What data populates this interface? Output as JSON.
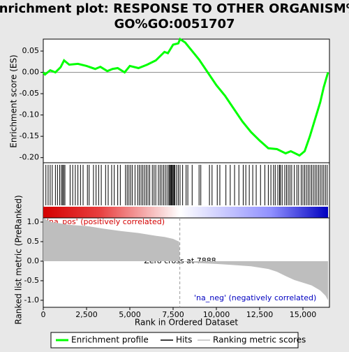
{
  "chart_data": [
    {
      "type": "line",
      "title": [
        "Enrichment plot: RESPONSE TO OTHER ORGANISM%",
        "GO%GO:0051707"
      ],
      "ylabel": "Enrichment score (ES)",
      "xlim": [
        0,
        16532
      ],
      "ylim": [
        -0.212,
        0.078
      ],
      "yticks": [
        0.05,
        {
          "value": 0,
          "label": "0.00"
        },
        -0.05,
        {
          "value": -0.1,
          "label": "-0.10"
        },
        -0.15,
        {
          "value": -0.2,
          "label": "-0.20"
        }
      ],
      "series": [
        {
          "name": "Enrichment profile",
          "color": "#00ff00",
          "x": [
            0,
            100,
            400,
            700,
            1000,
            1200,
            1500,
            2000,
            2500,
            3000,
            3300,
            3700,
            4000,
            4300,
            4700,
            5000,
            5500,
            6000,
            6500,
            7000,
            7200,
            7500,
            7800,
            7900,
            8200,
            8500,
            9000,
            9500,
            10000,
            10500,
            11000,
            11500,
            12000,
            12500,
            13000,
            13500,
            14000,
            14300,
            14800,
            15100,
            15400,
            15700,
            16000,
            16200,
            16450
          ],
          "values": [
            0.0,
            -0.005,
            0.005,
            0.0,
            0.012,
            0.028,
            0.018,
            0.02,
            0.015,
            0.008,
            0.013,
            0.003,
            0.008,
            0.01,
            0.0,
            0.015,
            0.01,
            0.018,
            0.028,
            0.048,
            0.045,
            0.065,
            0.068,
            0.078,
            0.07,
            0.055,
            0.03,
            0.0,
            -0.03,
            -0.055,
            -0.085,
            -0.115,
            -0.14,
            -0.16,
            -0.178,
            -0.18,
            -0.19,
            -0.185,
            -0.195,
            -0.185,
            -0.15,
            -0.11,
            -0.07,
            -0.035,
            0.0
          ]
        }
      ]
    },
    {
      "type": "hits",
      "name": "Hits",
      "color": "#000000",
      "xlim": [
        0,
        16532
      ],
      "x": [
        150,
        280,
        400,
        520,
        700,
        820,
        950,
        1050,
        1120,
        1180,
        1250,
        1550,
        1700,
        1850,
        2000,
        2150,
        2300,
        2550,
        2650,
        2900,
        3050,
        3200,
        3350,
        3600,
        3750,
        3950,
        4100,
        4300,
        4450,
        4750,
        4850,
        4950,
        5050,
        5150,
        5300,
        5450,
        5550,
        5650,
        5750,
        5850,
        5950,
        6050,
        6150,
        6300,
        6400,
        6500,
        6650,
        6750,
        6850,
        6950,
        7050,
        7150,
        7250,
        7300,
        7350,
        7400,
        7450,
        7500,
        7550,
        7600,
        7700,
        7800,
        7900,
        8050,
        8250,
        8350,
        8600,
        9000,
        9100,
        9600,
        9750,
        10050,
        10200,
        10550,
        10800,
        11050,
        11300,
        11550,
        11700,
        11900,
        12100,
        12300,
        12550,
        12800,
        13000,
        13150,
        13300,
        13400,
        13550,
        13650,
        13700,
        13800,
        13950,
        14050,
        14150,
        14250,
        14350,
        14500,
        14650,
        14750,
        14900,
        15000,
        15100,
        15200,
        15300,
        15400,
        15500,
        15600,
        15700,
        15800,
        15900,
        16000,
        16100,
        16200,
        16300,
        16400
      ]
    },
    {
      "type": "area",
      "name": "Ranking metric scores",
      "color": "#bebebe",
      "ylabel": "Ranked list metric (PreRanked)",
      "xlabel": "Rank in Ordered Dataset",
      "xlim": [
        0,
        16532
      ],
      "ylim": [
        -1.18,
        1.107
      ],
      "xticks": [
        0,
        {
          "value": 2500,
          "label": "2,500"
        },
        {
          "value": 5000,
          "label": "5,000"
        },
        {
          "value": 7500,
          "label": "7,500"
        },
        {
          "value": 10000,
          "label": "10,000"
        },
        {
          "value": 12500,
          "label": "12,500"
        },
        {
          "value": 15000,
          "label": "15,000"
        }
      ],
      "yticks": [
        {
          "value": 1,
          "label": "1.0"
        },
        0.5,
        {
          "value": 0,
          "label": "0.0"
        },
        -0.5,
        {
          "value": -1,
          "label": "-1.0"
        }
      ],
      "x": [
        0,
        500,
        1500,
        2500,
        3500,
        4500,
        5500,
        6500,
        7000,
        7500,
        7850,
        7888,
        9000,
        10000,
        11000,
        12000,
        13000,
        13500,
        14000,
        14500,
        15000,
        15500,
        16000,
        16300,
        16450
      ],
      "values": [
        1.1,
        1.0,
        0.93,
        0.9,
        0.83,
        0.77,
        0.72,
        0.65,
        0.62,
        0.57,
        0.5,
        0,
        -0.05,
        -0.07,
        -0.1,
        -0.13,
        -0.2,
        -0.27,
        -0.38,
        -0.48,
        -0.55,
        -0.62,
        -0.75,
        -0.88,
        -1.0
      ],
      "zero_cross": 7888,
      "annotations": [
        "'na_pos' (positively correlated)",
        "Zero cross at 7888",
        "'na_neg' (negatively correlated)"
      ]
    }
  ]
}
